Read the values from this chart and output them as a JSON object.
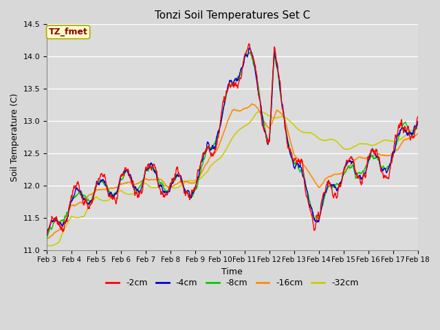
{
  "title": "Tonzi Soil Temperatures Set C",
  "xlabel": "Time",
  "ylabel": "Soil Temperature (C)",
  "ylim": [
    11.0,
    14.5
  ],
  "annotation": "TZ_fmet",
  "annotation_color": "#8B0000",
  "annotation_bg": "#FFFFCC",
  "series_colors": {
    "-2cm": "#FF0000",
    "-4cm": "#0000CD",
    "-8cm": "#00CC00",
    "-16cm": "#FF8C00",
    "-32cm": "#CCCC00"
  },
  "legend_entries": [
    "-2cm",
    "-4cm",
    "-8cm",
    "-16cm",
    "-32cm"
  ],
  "fig_facecolor": "#D8D8D8",
  "plot_facecolor": "#DCDCDC",
  "tick_dates": [
    "Feb 3",
    "Feb 4",
    "Feb 5",
    "Feb 6",
    "Feb 7",
    "Feb 8",
    "Feb 9",
    "Feb 10",
    "Feb 11",
    "Feb 12",
    "Feb 13",
    "Feb 14",
    "Feb 15",
    "Feb 16",
    "Feb 17",
    "Feb 18"
  ],
  "yticks": [
    11.0,
    11.5,
    12.0,
    12.5,
    13.0,
    13.5,
    14.0,
    14.5
  ],
  "figsize": [
    6.4,
    4.8
  ],
  "dpi": 100
}
